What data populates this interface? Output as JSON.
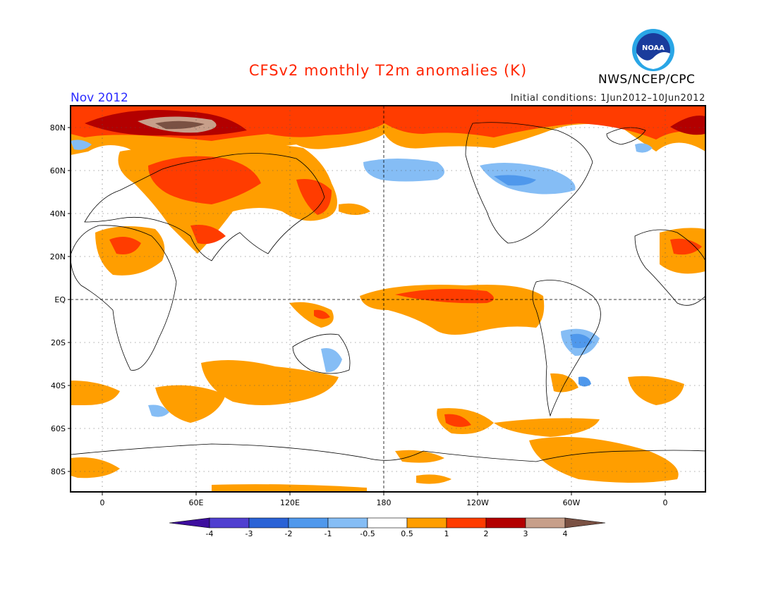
{
  "header": {
    "title": "CFSv2 monthly T2m anomalies (K)",
    "period": "Nov 2012",
    "initial_conditions": "Initial conditions: 1Jun2012–10Jun2012",
    "organization": "NWS/NCEP/CPC",
    "logo_text": "NOAA"
  },
  "map": {
    "projection": "cylindrical",
    "lon_range": [
      -20,
      380
    ],
    "lat_range": [
      -90,
      90
    ],
    "grid": true,
    "lat_labels": [
      "80N",
      "60N",
      "40N",
      "20N",
      "EQ",
      "20S",
      "40S",
      "60S",
      "80S"
    ],
    "lon_labels": [
      "0",
      "60E",
      "120E",
      "180",
      "120W",
      "60W",
      "0"
    ],
    "reference_lines": [
      "equator",
      "180"
    ]
  },
  "colorbar": {
    "labels": [
      "-4",
      "-3",
      "-2",
      "-1",
      "-0.5",
      "0.5",
      "1",
      "2",
      "3",
      "4"
    ],
    "colors": [
      "#3d0e9e",
      "#4f3fd0",
      "#2a62d6",
      "#4f98ec",
      "#85bdf5",
      "#ffffff",
      "#ff9e00",
      "#ff3c00",
      "#b30000",
      "#c79f8a",
      "#7a5143"
    ]
  }
}
